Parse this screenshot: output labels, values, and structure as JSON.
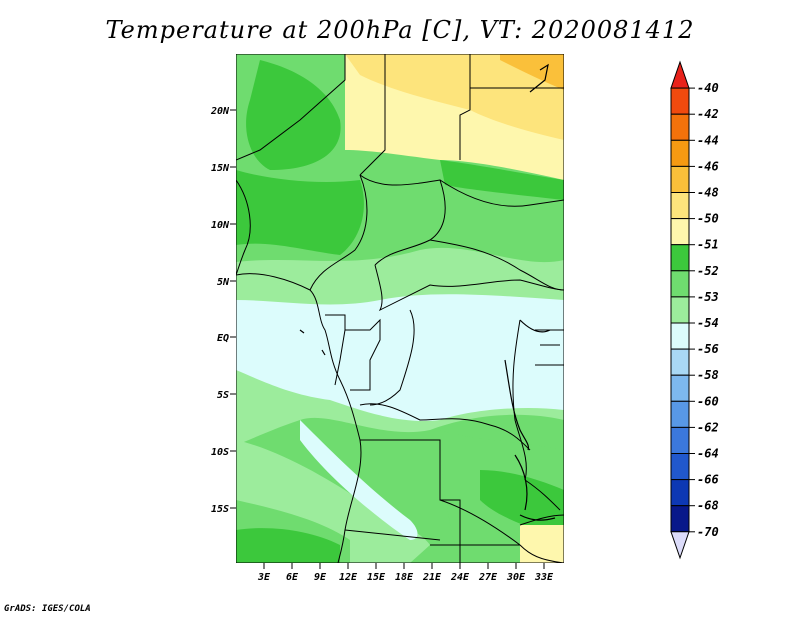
{
  "title": "Temperature at 200hPa [C], VT: 2020081412",
  "footer": "GrADS: IGES/COLA",
  "map": {
    "lat_labels": [
      "20N",
      "15N",
      "10N",
      "5N",
      "EQ",
      "5S",
      "10S",
      "15S"
    ],
    "lon_labels": [
      "3E",
      "6E",
      "9E",
      "12E",
      "15E",
      "18E",
      "21E",
      "24E",
      "27E",
      "30E",
      "33E"
    ]
  },
  "colorbar": {
    "labels": [
      "-40",
      "-42",
      "-44",
      "-46",
      "-48",
      "-50",
      "-51",
      "-52",
      "-53",
      "-54",
      "-56",
      "-58",
      "-60",
      "-62",
      "-64",
      "-66",
      "-68",
      "-70"
    ],
    "colors": [
      "#e8221b",
      "#f04a0e",
      "#f3720b",
      "#f69a12",
      "#fac03a",
      "#fde47c",
      "#fef7ad",
      "#3cc83c",
      "#6fdc6f",
      "#9cec9c",
      "#dcfcfc",
      "#a9d8f5",
      "#7db8ee",
      "#5898e6",
      "#3b78dc",
      "#2158cc",
      "#0d38b4",
      "#08188a",
      "#dcdcfa"
    ]
  }
}
